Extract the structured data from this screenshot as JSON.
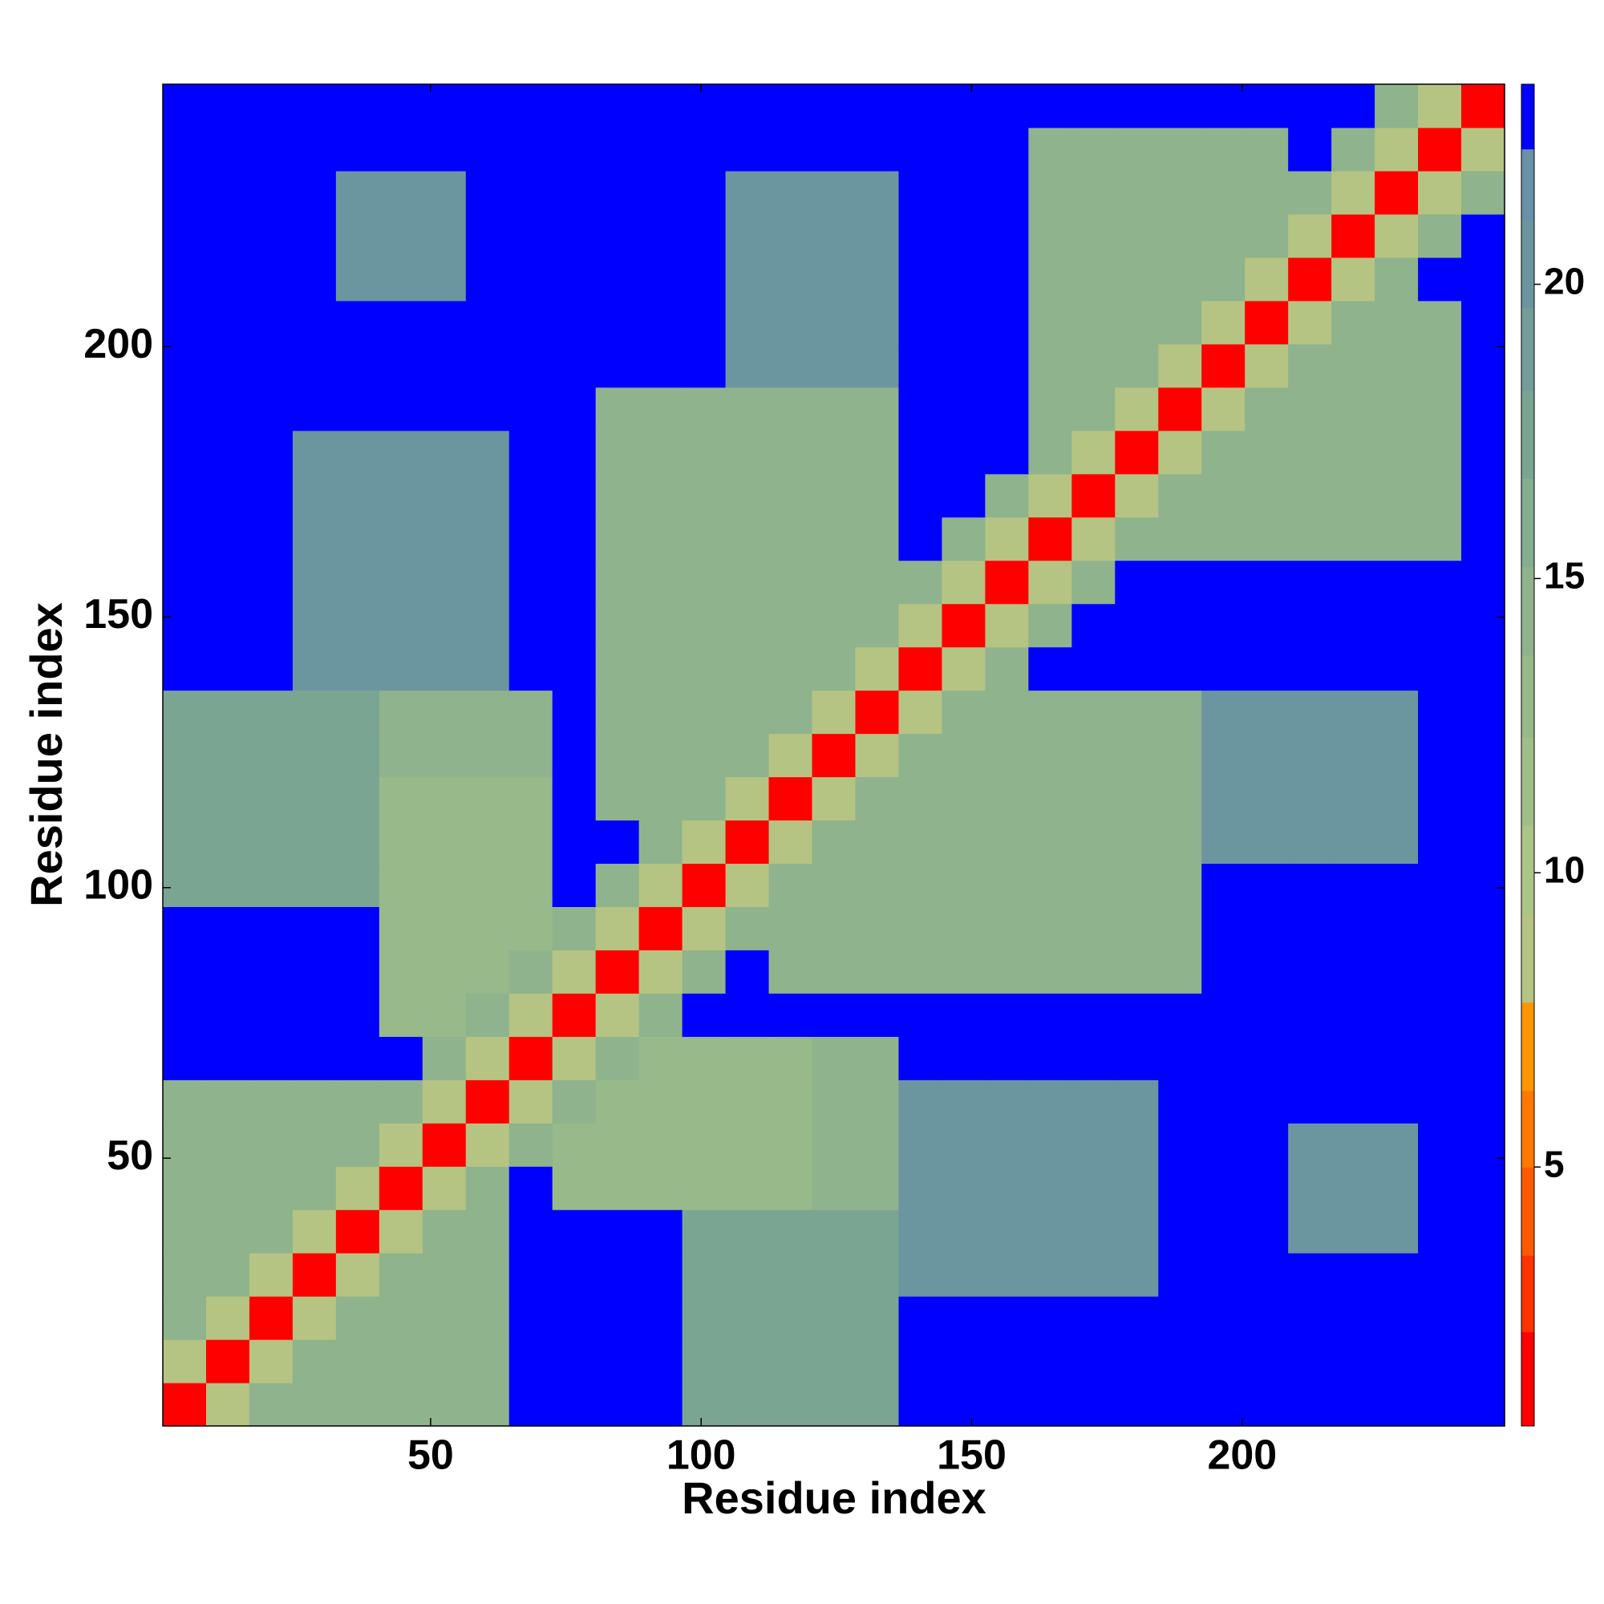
{
  "chart_data": {
    "type": "heatmap",
    "xlabel": "Residue index",
    "ylabel": "Residue index",
    "xlim": [
      0.5,
      248.5
    ],
    "ylim": [
      0.5,
      248.5
    ],
    "xticks": [
      50,
      100,
      150,
      200
    ],
    "yticks": [
      50,
      100,
      150,
      200
    ],
    "x": [
      4.5,
      12.5,
      20.5,
      28.5,
      36.5,
      44.5,
      52.5,
      60.5,
      68.5,
      76.5,
      84.5,
      92.5,
      100.5,
      108.5,
      116.5,
      124.5,
      132.5,
      140.5,
      148.5,
      156.5,
      164.5,
      172.5,
      180.5,
      188.5,
      196.5,
      204.5,
      212.5,
      220.5,
      228.5,
      236.5,
      244.5
    ],
    "y": [
      4.5,
      12.5,
      20.5,
      28.5,
      36.5,
      44.5,
      52.5,
      60.5,
      68.5,
      76.5,
      84.5,
      92.5,
      100.5,
      108.5,
      116.5,
      124.5,
      132.5,
      140.5,
      148.5,
      156.5,
      164.5,
      172.5,
      180.5,
      188.5,
      196.5,
      204.5,
      212.5,
      220.5,
      228.5,
      236.5,
      244.5
    ],
    "z": [
      [
        2,
        8,
        14,
        14,
        14,
        14,
        14,
        14,
        23,
        23,
        23,
        23,
        17,
        17,
        17,
        17,
        17,
        23,
        23,
        23,
        23,
        23,
        23,
        23,
        23,
        23,
        23,
        23,
        23,
        23,
        23
      ],
      [
        8,
        2,
        8,
        14,
        14,
        14,
        14,
        14,
        23,
        23,
        23,
        23,
        17,
        17,
        17,
        17,
        17,
        23,
        23,
        23,
        23,
        23,
        23,
        23,
        23,
        23,
        23,
        23,
        23,
        23,
        23
      ],
      [
        14,
        8,
        2,
        8,
        14,
        14,
        14,
        14,
        23,
        23,
        23,
        23,
        17,
        17,
        17,
        17,
        17,
        23,
        23,
        23,
        23,
        23,
        23,
        23,
        23,
        23,
        23,
        23,
        23,
        23,
        23
      ],
      [
        14,
        14,
        8,
        2,
        8,
        14,
        14,
        14,
        23,
        23,
        23,
        23,
        17,
        17,
        17,
        17,
        17,
        20,
        20,
        20,
        20,
        20,
        20,
        23,
        23,
        23,
        23,
        23,
        23,
        23,
        23
      ],
      [
        14,
        14,
        14,
        8,
        2,
        8,
        14,
        14,
        23,
        23,
        23,
        23,
        17,
        17,
        17,
        17,
        17,
        20,
        20,
        20,
        20,
        20,
        20,
        23,
        23,
        23,
        21,
        21,
        21,
        23,
        23
      ],
      [
        14,
        14,
        14,
        14,
        8,
        2,
        8,
        14,
        23,
        13,
        13,
        13,
        13,
        13,
        13,
        15,
        15,
        20,
        20,
        20,
        20,
        20,
        20,
        23,
        23,
        23,
        21,
        21,
        21,
        23,
        23
      ],
      [
        14,
        14,
        14,
        14,
        14,
        8,
        2,
        8,
        14,
        13,
        13,
        13,
        13,
        13,
        13,
        15,
        15,
        20,
        20,
        20,
        20,
        20,
        20,
        23,
        23,
        23,
        21,
        21,
        21,
        23,
        23
      ],
      [
        14,
        14,
        14,
        14,
        14,
        14,
        8,
        2,
        8,
        14,
        13,
        13,
        13,
        13,
        13,
        15,
        15,
        20,
        20,
        20,
        20,
        20,
        20,
        23,
        23,
        23,
        23,
        23,
        23,
        23,
        23
      ],
      [
        23,
        23,
        23,
        23,
        23,
        23,
        14,
        8,
        2,
        8,
        14,
        13,
        13,
        13,
        13,
        15,
        15,
        23,
        23,
        23,
        23,
        23,
        23,
        23,
        23,
        23,
        23,
        23,
        23,
        23,
        23
      ],
      [
        23,
        23,
        23,
        23,
        23,
        13,
        13,
        14,
        8,
        2,
        8,
        14,
        23,
        23,
        23,
        23,
        23,
        23,
        23,
        23,
        23,
        23,
        23,
        23,
        23,
        23,
        23,
        23,
        23,
        23,
        23
      ],
      [
        23,
        23,
        23,
        23,
        23,
        13,
        13,
        13,
        14,
        8,
        2,
        8,
        14,
        23,
        14,
        14,
        14,
        14,
        14,
        14,
        14,
        14,
        14,
        14,
        23,
        23,
        23,
        23,
        23,
        23,
        23
      ],
      [
        23,
        23,
        23,
        23,
        23,
        13,
        13,
        13,
        13,
        14,
        8,
        2,
        8,
        14,
        14,
        14,
        14,
        14,
        14,
        14,
        14,
        14,
        14,
        14,
        23,
        23,
        23,
        23,
        23,
        23,
        23
      ],
      [
        17,
        17,
        17,
        17,
        17,
        13,
        13,
        13,
        13,
        23,
        14,
        8,
        2,
        8,
        14,
        14,
        14,
        14,
        14,
        14,
        14,
        14,
        14,
        14,
        23,
        23,
        23,
        23,
        23,
        23,
        23
      ],
      [
        17,
        17,
        17,
        17,
        17,
        13,
        13,
        13,
        13,
        23,
        23,
        14,
        8,
        2,
        8,
        14,
        14,
        14,
        14,
        14,
        14,
        14,
        14,
        14,
        20,
        20,
        20,
        20,
        20,
        23,
        23
      ],
      [
        17,
        17,
        17,
        17,
        17,
        13,
        13,
        13,
        13,
        23,
        14,
        14,
        14,
        8,
        2,
        8,
        14,
        14,
        14,
        14,
        14,
        14,
        14,
        14,
        20,
        20,
        20,
        20,
        20,
        23,
        23
      ],
      [
        17,
        17,
        17,
        17,
        17,
        15,
        15,
        15,
        15,
        23,
        14,
        14,
        14,
        14,
        8,
        2,
        8,
        14,
        14,
        14,
        14,
        14,
        14,
        14,
        20,
        20,
        20,
        20,
        20,
        23,
        23
      ],
      [
        17,
        17,
        17,
        17,
        17,
        15,
        15,
        15,
        15,
        23,
        14,
        14,
        14,
        14,
        14,
        8,
        2,
        8,
        14,
        14,
        14,
        14,
        14,
        14,
        20,
        20,
        20,
        20,
        20,
        23,
        23
      ],
      [
        23,
        23,
        23,
        20,
        20,
        20,
        20,
        20,
        23,
        23,
        14,
        14,
        14,
        14,
        14,
        14,
        8,
        2,
        8,
        14,
        23,
        23,
        23,
        23,
        23,
        23,
        23,
        23,
        23,
        23,
        23
      ],
      [
        23,
        23,
        23,
        20,
        20,
        20,
        20,
        20,
        23,
        23,
        14,
        14,
        14,
        14,
        14,
        14,
        14,
        8,
        2,
        8,
        14,
        23,
        23,
        23,
        23,
        23,
        23,
        23,
        23,
        23,
        23
      ],
      [
        23,
        23,
        23,
        20,
        20,
        20,
        20,
        20,
        23,
        23,
        14,
        14,
        14,
        14,
        14,
        14,
        14,
        14,
        8,
        2,
        8,
        14,
        23,
        23,
        23,
        23,
        23,
        23,
        23,
        23,
        23
      ],
      [
        23,
        23,
        23,
        20,
        20,
        20,
        20,
        20,
        23,
        23,
        14,
        14,
        14,
        14,
        14,
        14,
        14,
        23,
        14,
        8,
        2,
        8,
        14,
        14,
        14,
        14,
        14,
        14,
        14,
        14,
        23
      ],
      [
        23,
        23,
        23,
        20,
        20,
        20,
        20,
        20,
        23,
        23,
        14,
        14,
        14,
        14,
        14,
        14,
        14,
        23,
        23,
        14,
        8,
        2,
        8,
        14,
        14,
        14,
        14,
        14,
        14,
        14,
        23
      ],
      [
        23,
        23,
        23,
        20,
        20,
        20,
        20,
        20,
        23,
        23,
        14,
        14,
        14,
        14,
        14,
        14,
        14,
        23,
        23,
        23,
        14,
        8,
        2,
        8,
        14,
        14,
        14,
        14,
        14,
        14,
        23
      ],
      [
        23,
        23,
        23,
        23,
        23,
        23,
        23,
        23,
        23,
        23,
        14,
        14,
        14,
        14,
        14,
        14,
        14,
        23,
        23,
        23,
        14,
        14,
        8,
        2,
        8,
        14,
        14,
        14,
        14,
        14,
        23
      ],
      [
        23,
        23,
        23,
        23,
        23,
        23,
        23,
        23,
        23,
        23,
        23,
        23,
        23,
        20,
        20,
        20,
        20,
        23,
        23,
        23,
        14,
        14,
        14,
        8,
        2,
        8,
        14,
        14,
        14,
        14,
        23
      ],
      [
        23,
        23,
        23,
        23,
        23,
        23,
        23,
        23,
        23,
        23,
        23,
        23,
        23,
        20,
        20,
        20,
        20,
        23,
        23,
        23,
        14,
        14,
        14,
        14,
        8,
        2,
        8,
        14,
        14,
        14,
        23
      ],
      [
        23,
        23,
        23,
        23,
        21,
        21,
        21,
        23,
        23,
        23,
        23,
        23,
        23,
        20,
        20,
        20,
        20,
        23,
        23,
        23,
        14,
        14,
        14,
        14,
        14,
        8,
        2,
        8,
        14,
        23,
        23
      ],
      [
        23,
        23,
        23,
        23,
        21,
        21,
        21,
        23,
        23,
        23,
        23,
        23,
        23,
        20,
        20,
        20,
        20,
        23,
        23,
        23,
        14,
        14,
        14,
        14,
        14,
        14,
        8,
        2,
        8,
        14,
        23
      ],
      [
        23,
        23,
        23,
        23,
        21,
        21,
        21,
        23,
        23,
        23,
        23,
        23,
        23,
        20,
        20,
        20,
        20,
        23,
        23,
        23,
        14,
        14,
        14,
        14,
        14,
        14,
        14,
        8,
        2,
        8,
        14
      ],
      [
        23,
        23,
        23,
        23,
        23,
        23,
        23,
        23,
        23,
        23,
        23,
        23,
        23,
        23,
        23,
        23,
        23,
        23,
        23,
        23,
        14,
        14,
        14,
        14,
        14,
        14,
        23,
        14,
        8,
        2,
        8
      ],
      [
        23,
        23,
        23,
        23,
        23,
        23,
        23,
        23,
        23,
        23,
        23,
        23,
        23,
        23,
        23,
        23,
        23,
        23,
        23,
        23,
        23,
        23,
        23,
        23,
        23,
        23,
        23,
        23,
        14,
        8,
        2
      ]
    ],
    "zlim": [
      0.6,
      23.4
    ],
    "zticks": [
      5,
      10,
      15,
      20
    ],
    "levels": [
      0.6,
      2.2,
      3.5,
      5,
      6.3,
      7.8,
      9.3,
      10.8,
      12.3,
      13.7,
      15.2,
      16.7,
      18.2,
      19.6,
      21.1,
      22.3,
      23.4
    ],
    "colors": [
      "#ff0000",
      "#ff3300",
      "#ff5a00",
      "#ff7800",
      "#ff9600",
      "#b5c482",
      "#aac585",
      "#a0bf88",
      "#98b98a",
      "#8fb38c",
      "#85ad90",
      "#7ba593",
      "#739d98",
      "#6b96a0",
      "#6890a8",
      "#0000ff"
    ]
  }
}
